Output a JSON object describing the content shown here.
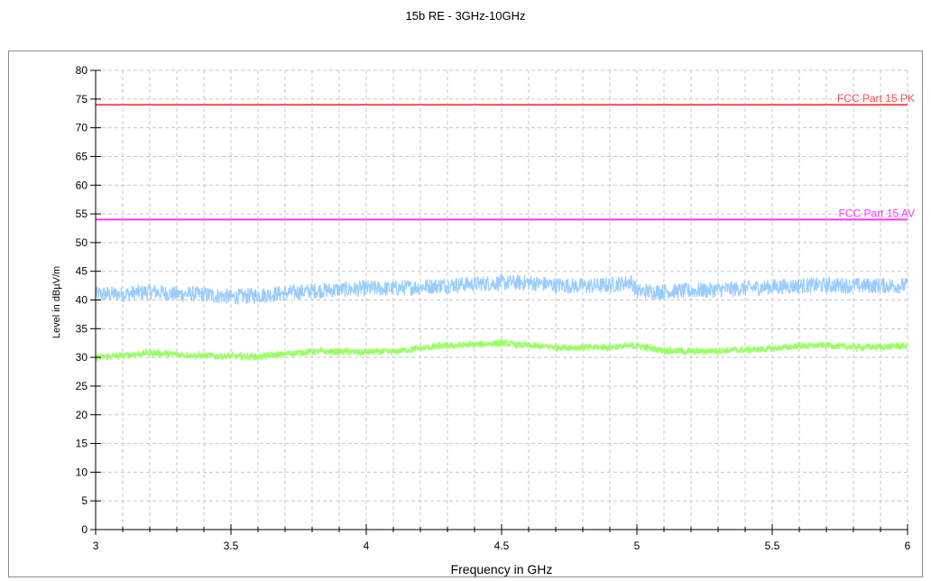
{
  "chart_data": {
    "type": "line",
    "title": "15b  RE - 3GHz-10GHz",
    "xlabel": "Frequency in GHz",
    "ylabel": "Level in dBµV/m",
    "xlim": [
      3,
      6
    ],
    "ylim": [
      0,
      80
    ],
    "x_ticks": [
      "3",
      "3.5",
      "4",
      "4.5",
      "5",
      "5.5",
      "6"
    ],
    "y_ticks": [
      "0",
      "5",
      "10",
      "15",
      "20",
      "25",
      "30",
      "35",
      "40",
      "45",
      "50",
      "55",
      "60",
      "65",
      "70",
      "75",
      "80"
    ],
    "grid": true,
    "limit_lines": [
      {
        "name": "FCC Part 15 PK",
        "value": 74,
        "color": "#ff4c4c"
      },
      {
        "name": "FCC Part 15 AV",
        "value": 54,
        "color": "#ff33ff"
      }
    ],
    "series": [
      {
        "color": "#99ccff",
        "x": [
          3.0,
          3.1,
          3.2,
          3.3,
          3.4,
          3.5,
          3.6,
          3.7,
          3.8,
          3.9,
          4.0,
          4.1,
          4.2,
          4.3,
          4.4,
          4.5,
          4.6,
          4.7,
          4.8,
          4.9,
          4.98,
          5.0,
          5.1,
          5.2,
          5.3,
          5.4,
          5.5,
          5.6,
          5.7,
          5.8,
          5.9,
          6.0
        ],
        "y": [
          41,
          41,
          41.5,
          41,
          41,
          40.5,
          40.8,
          41.2,
          41.6,
          41.8,
          42,
          42,
          42.3,
          42.6,
          42.8,
          43,
          43,
          42.6,
          42.4,
          42.6,
          43.2,
          41.5,
          41.5,
          41.6,
          41.8,
          42,
          42.3,
          42.5,
          42.6,
          42.5,
          42.5,
          42.5
        ],
        "spread": 1.4
      },
      {
        "color": "#99ff66",
        "x": [
          3.0,
          3.1,
          3.2,
          3.3,
          3.4,
          3.5,
          3.6,
          3.7,
          3.8,
          3.9,
          4.0,
          4.1,
          4.2,
          4.3,
          4.4,
          4.5,
          4.6,
          4.7,
          4.8,
          4.9,
          5.0,
          5.1,
          5.2,
          5.3,
          5.4,
          5.5,
          5.6,
          5.7,
          5.8,
          5.9,
          6.0
        ],
        "y": [
          30,
          30.3,
          30.8,
          30.5,
          30.3,
          30.2,
          30.1,
          30.6,
          31,
          31,
          30.9,
          31,
          31.6,
          32,
          32.2,
          32.5,
          32,
          31.8,
          31.7,
          31.8,
          32,
          31.2,
          31,
          31.2,
          31.3,
          31.5,
          32,
          32.1,
          31.8,
          31.8,
          32
        ],
        "spread": 0.55
      }
    ]
  }
}
